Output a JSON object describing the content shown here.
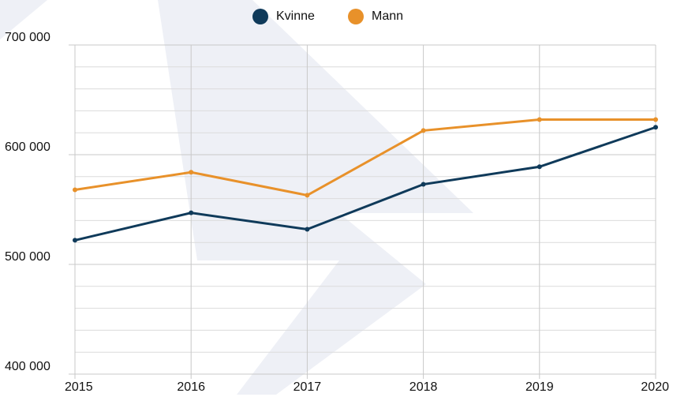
{
  "chart_data": {
    "type": "line",
    "x": [
      2015,
      2016,
      2017,
      2018,
      2019,
      2020
    ],
    "xlim": [
      2015,
      2020
    ],
    "xticks": [
      2015,
      2016,
      2017,
      2018,
      2019,
      2020
    ],
    "ylim": [
      400000,
      700000
    ],
    "yticks": [
      {
        "value": 400000,
        "label": "400 000"
      },
      {
        "value": 500000,
        "label": "500 000"
      },
      {
        "value": 600000,
        "label": "600 000"
      },
      {
        "value": 700000,
        "label": "700 000"
      }
    ],
    "minor_yticks": [
      420000,
      440000,
      460000,
      480000,
      520000,
      540000,
      560000,
      580000,
      620000,
      640000,
      660000,
      680000
    ],
    "grid": true,
    "legend": "top",
    "series": [
      {
        "name": "Kvinne",
        "color": "#0f3a5a",
        "values": [
          522000,
          547000,
          532000,
          573000,
          589000,
          625000
        ]
      },
      {
        "name": "Mann",
        "color": "#e8912a",
        "values": [
          568000,
          584000,
          563000,
          622000,
          632000,
          632000
        ]
      }
    ]
  }
}
